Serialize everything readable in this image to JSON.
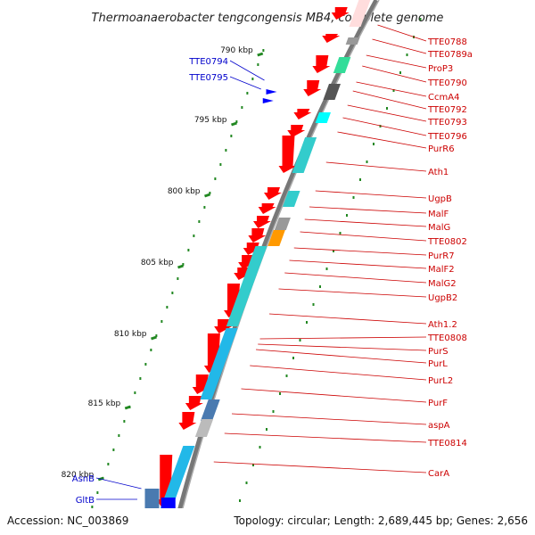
{
  "title": "Thermoanaerobacter tengcongensis MB4, complete genome",
  "accession": "Accession: NC_003869",
  "summary": "Topology: circular; Length: 2,689,445 bp; Genes: 2,656",
  "colors": {
    "forward": "#ff0000",
    "reverse": "#0000ff",
    "cyan": "#33cccc",
    "skyblue": "#22b8e8",
    "green": "#33dd99",
    "gray": "#999999",
    "darkgray": "#555555",
    "steelblue": "#4a7ab0",
    "orange": "#ff9900",
    "label_red": "#cc0000",
    "label_blue": "#0000cc",
    "tick": "#228822"
  },
  "kbp_ticks": [
    {
      "label": "790 kbp"
    },
    {
      "label": "795 kbp"
    },
    {
      "label": "800 kbp"
    },
    {
      "label": "805 kbp"
    },
    {
      "label": "810 kbp"
    },
    {
      "label": "815 kbp"
    },
    {
      "label": "820 kbp"
    }
  ],
  "labels_right": [
    "TTE0788",
    "TTE0789a",
    "ProP3",
    "TTE0790",
    "CcmA4",
    "TTE0792",
    "TTE0793",
    "TTE0796",
    "PurR6",
    "Ath1",
    "UgpB",
    "MalF",
    "MalG",
    "TTE0802",
    "PurR7",
    "MalF2",
    "MalG2",
    "UgpB2",
    "Ath1.2",
    "TTE0808",
    "PurS",
    "PurL",
    "PurL2",
    "PurF",
    "aspA",
    "TTE0814",
    "CarA"
  ],
  "labels_left": [
    "TTE0794",
    "TTE0795",
    "AsnB",
    "GltB"
  ]
}
